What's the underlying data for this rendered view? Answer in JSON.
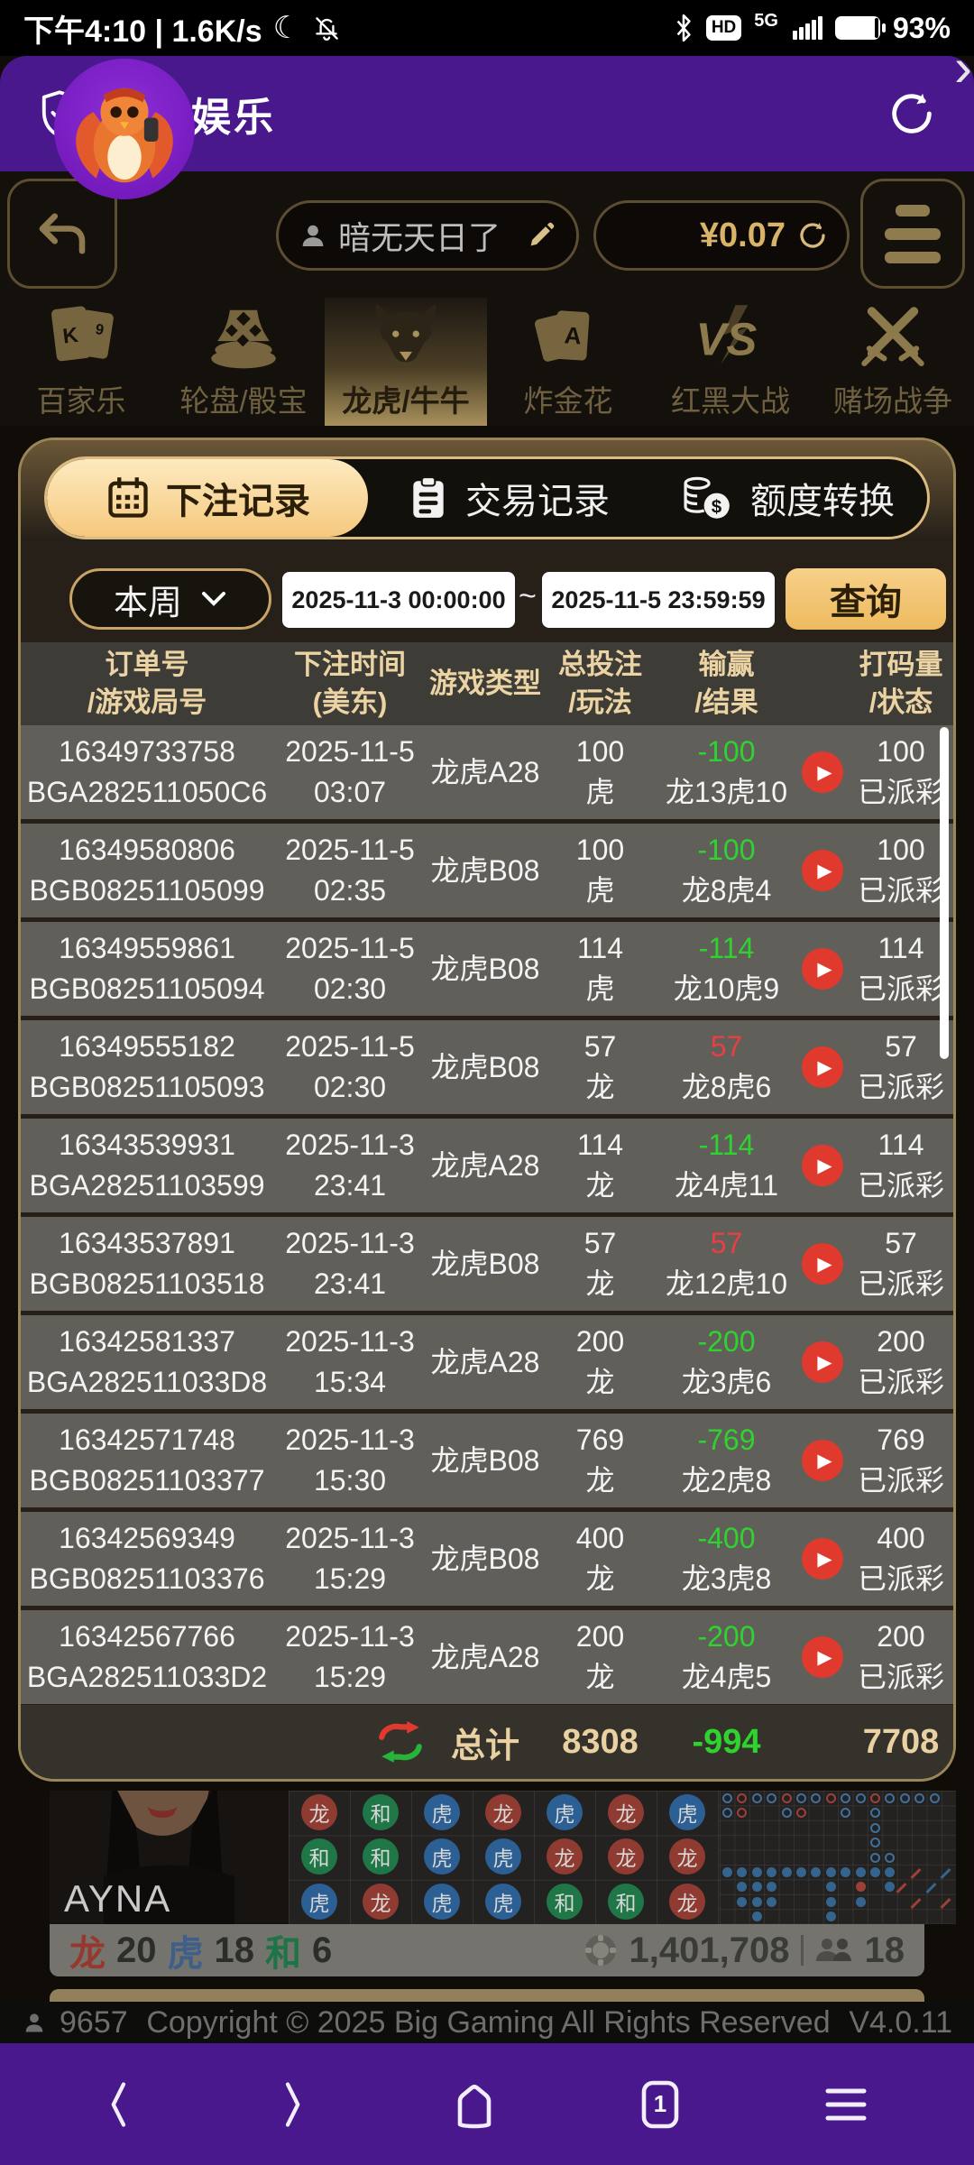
{
  "status_bar": {
    "left_text": "下午4:10 | 1.6K/s",
    "moon_glyph": "☾",
    "hd_label": "HD",
    "network_label": "5G",
    "battery_percent": "93%"
  },
  "app_header": {
    "title": "非凡娱乐"
  },
  "lobby_bar": {
    "username": "暗无天日了",
    "balance": "¥0.07"
  },
  "game_tabs": {
    "more_arrow": "›",
    "items": [
      {
        "label": "百家乐",
        "icon": "cards-k9",
        "active": false
      },
      {
        "label": "轮盘/骰宝",
        "icon": "dice",
        "active": false
      },
      {
        "label": "龙虎/牛牛",
        "icon": "bull",
        "active": true
      },
      {
        "label": "炸金花",
        "icon": "cards-a",
        "active": false
      },
      {
        "label": "红黑大战",
        "icon": "vs",
        "active": false
      },
      {
        "label": "赌场战争",
        "icon": "swords",
        "active": false
      }
    ]
  },
  "records_panel": {
    "tabs": [
      {
        "label": "下注记录",
        "icon": "calendar",
        "active": true
      },
      {
        "label": "交易记录",
        "icon": "clipboard",
        "active": false
      },
      {
        "label": "额度转换",
        "icon": "coins",
        "active": false
      }
    ],
    "filter": {
      "period": "本周",
      "date_from": "2025-11-3 00:00:00",
      "tilde": "~",
      "date_to": "2025-11-5 23:59:59",
      "query_label": "查询"
    },
    "table": {
      "headers": [
        {
          "line1": "订单号",
          "line2": "/游戏局号"
        },
        {
          "line1": "下注时间",
          "line2": "(美东)"
        },
        {
          "line1": "游戏类型",
          "line2": ""
        },
        {
          "line1": "总投注",
          "line2": "/玩法"
        },
        {
          "line1": "输赢",
          "line2": "/结果"
        },
        {
          "line1": "打码量",
          "line2": "/状态"
        }
      ],
      "rows": [
        {
          "order_no": "16349733758",
          "round_no": "BGA282511050C6",
          "date": "2025-11-5",
          "time": "03:07",
          "game": "龙虎A28",
          "bet": "100",
          "play": "虎",
          "winloss": "-100",
          "winloss_color": "green",
          "result": "龙13虎10",
          "turnover": "100",
          "status": "已派彩"
        },
        {
          "order_no": "16349580806",
          "round_no": "BGB08251105099",
          "date": "2025-11-5",
          "time": "02:35",
          "game": "龙虎B08",
          "bet": "100",
          "play": "虎",
          "winloss": "-100",
          "winloss_color": "green",
          "result": "龙8虎4",
          "turnover": "100",
          "status": "已派彩"
        },
        {
          "order_no": "16349559861",
          "round_no": "BGB08251105094",
          "date": "2025-11-5",
          "time": "02:30",
          "game": "龙虎B08",
          "bet": "114",
          "play": "虎",
          "winloss": "-114",
          "winloss_color": "green",
          "result": "龙10虎9",
          "turnover": "114",
          "status": "已派彩"
        },
        {
          "order_no": "16349555182",
          "round_no": "BGB08251105093",
          "date": "2025-11-5",
          "time": "02:30",
          "game": "龙虎B08",
          "bet": "57",
          "play": "龙",
          "winloss": "57",
          "winloss_color": "red",
          "result": "龙8虎6",
          "turnover": "57",
          "status": "已派彩"
        },
        {
          "order_no": "16343539931",
          "round_no": "BGA28251103599",
          "date": "2025-11-3",
          "time": "23:41",
          "game": "龙虎A28",
          "bet": "114",
          "play": "龙",
          "winloss": "-114",
          "winloss_color": "green",
          "result": "龙4虎11",
          "turnover": "114",
          "status": "已派彩"
        },
        {
          "order_no": "16343537891",
          "round_no": "BGB08251103518",
          "date": "2025-11-3",
          "time": "23:41",
          "game": "龙虎B08",
          "bet": "57",
          "play": "龙",
          "winloss": "57",
          "winloss_color": "red",
          "result": "龙12虎10",
          "turnover": "57",
          "status": "已派彩"
        },
        {
          "order_no": "16342581337",
          "round_no": "BGA282511033D8",
          "date": "2025-11-3",
          "time": "15:34",
          "game": "龙虎A28",
          "bet": "200",
          "play": "龙",
          "winloss": "-200",
          "winloss_color": "green",
          "result": "龙3虎6",
          "turnover": "200",
          "status": "已派彩"
        },
        {
          "order_no": "16342571748",
          "round_no": "BGB08251103377",
          "date": "2025-11-3",
          "time": "15:30",
          "game": "龙虎B08",
          "bet": "769",
          "play": "龙",
          "winloss": "-769",
          "winloss_color": "green",
          "result": "龙2虎8",
          "turnover": "769",
          "status": "已派彩"
        },
        {
          "order_no": "16342569349",
          "round_no": "BGB08251103376",
          "date": "2025-11-3",
          "time": "15:29",
          "game": "龙虎B08",
          "bet": "400",
          "play": "龙",
          "winloss": "-400",
          "winloss_color": "green",
          "result": "龙3虎8",
          "turnover": "400",
          "status": "已派彩"
        },
        {
          "order_no": "16342567766",
          "round_no": "BGA282511033D2",
          "date": "2025-11-3",
          "time": "15:29",
          "game": "龙虎A28",
          "bet": "200",
          "play": "龙",
          "winloss": "-200",
          "winloss_color": "green",
          "result": "龙4虎5",
          "turnover": "200",
          "status": "已派彩"
        }
      ],
      "total": {
        "label": "总计",
        "bet": "8308",
        "winloss": "-994",
        "turnover": "7708"
      }
    }
  },
  "live_game": {
    "dealer_name": "AYNA",
    "big_road_rows": [
      [
        "龙",
        "和",
        "虎",
        "龙",
        "虎",
        "龙",
        "虎"
      ],
      [
        "和",
        "和",
        "虎",
        "虎",
        "龙",
        "龙",
        "龙"
      ],
      [
        "虎",
        "龙",
        "虎",
        "虎",
        "和",
        "和",
        "龙"
      ]
    ],
    "bead_grid": [
      "brbbrbbrbbrbbbb.",
      "br..br..b.b.....",
      "..........b.....",
      "..........b.....",
      "..........bb....",
      "BBBBBBBBBBBB.u.d",
      ".BBB...B.R.Bu.d.",
      ".BBB...B.B...u.u",
      "..B....B........"
    ],
    "stats": {
      "dragon_label": "龙",
      "dragon_count": "20",
      "tiger_label": "虎",
      "tiger_count": "18",
      "tie_label": "和",
      "tie_count": "6",
      "pot": "1,401,708",
      "players": "18"
    }
  },
  "footer": {
    "online_count": "9657",
    "copyright": "Copyright © 2025 Big Gaming All Rights Reserved",
    "version": "V4.0.11"
  },
  "colors": {
    "purple": "#48188c",
    "accent_gold": "#d9b87c",
    "green": "#2fd32f",
    "red": "#e84040",
    "play_red": "#e0392e",
    "dragon_red": "#8f3b31",
    "tie_green": "#1f7747",
    "tiger_blue": "#2c5f93"
  }
}
